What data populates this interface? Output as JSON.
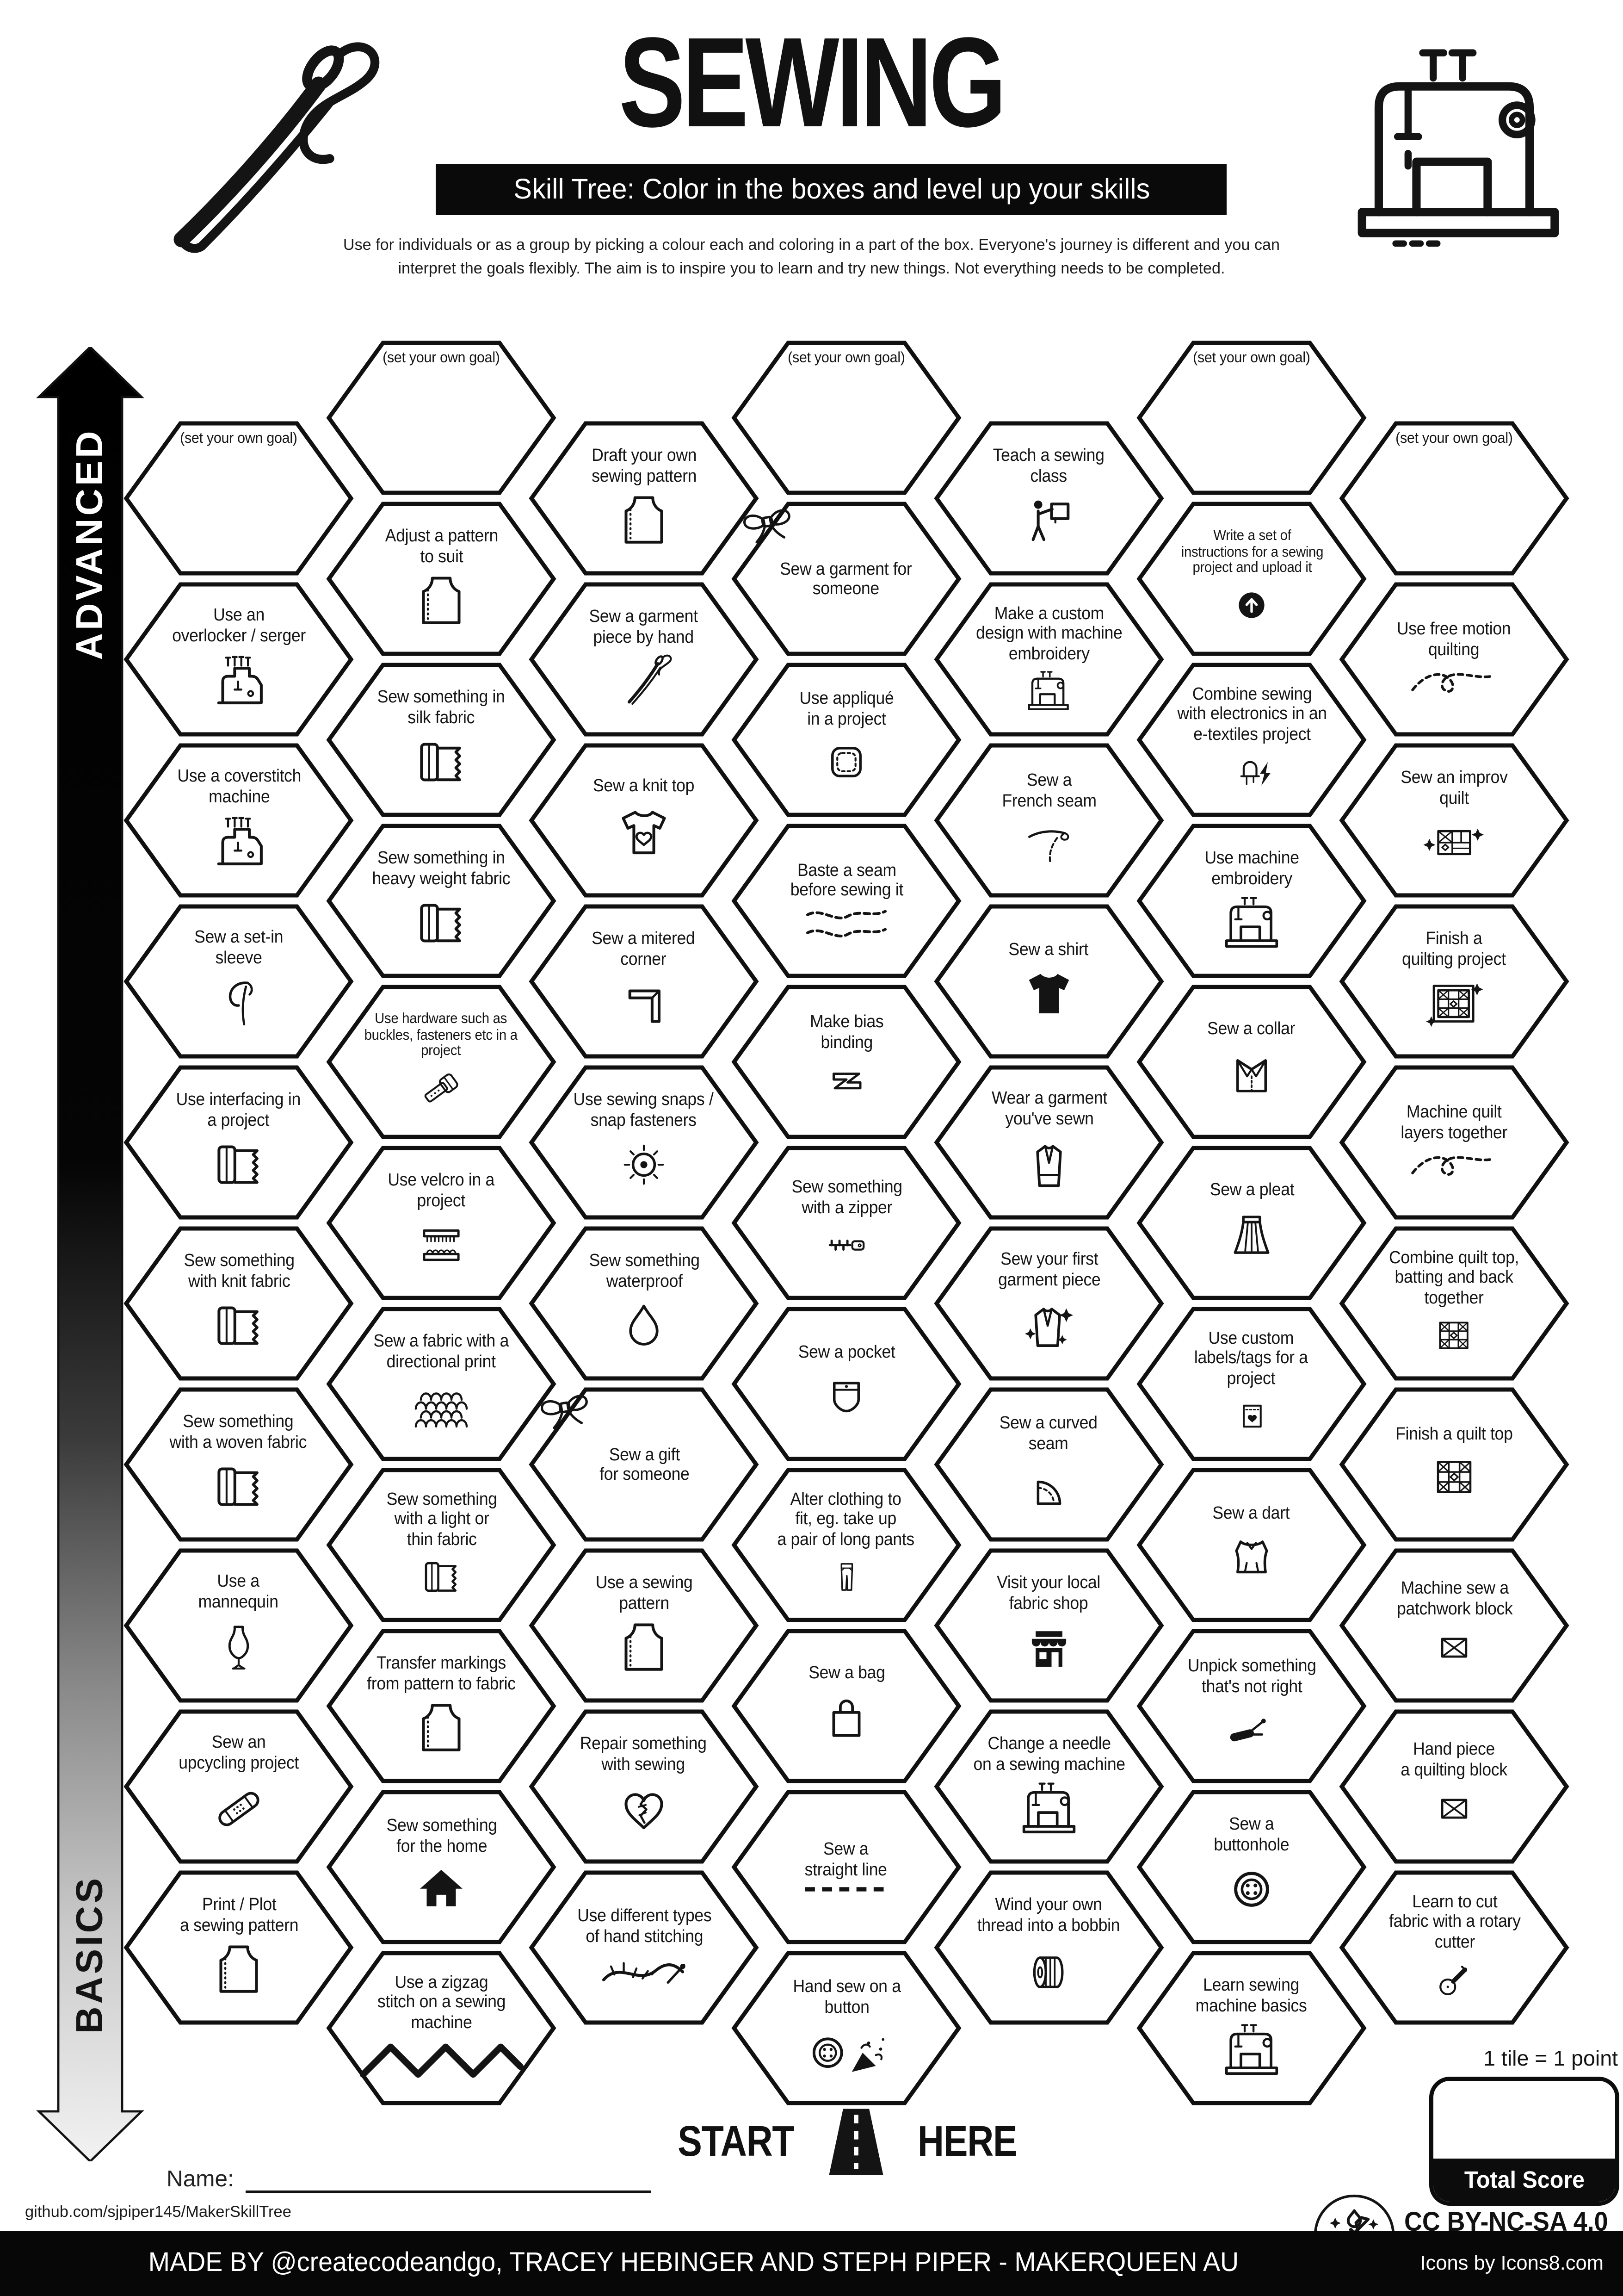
{
  "header": {
    "title": "SEWING",
    "subtitle": "Skill Tree:  Color in the boxes and level up your skills",
    "desc1": "Use for individuals or as a group by picking a colour each and coloring in a part of the box.  Everyone's journey is different and you can",
    "desc2": "interpret the goals flexibly.  The aim is to inspire you to learn and try new things. Not everything needs to be completed.",
    "left_icon": "sewing-needle-icon",
    "right_icon": "sewing-machine-icon"
  },
  "axis": {
    "top_label": "ADVANCED",
    "bottom_label": "BASICS"
  },
  "grid": {
    "columns": [
      {
        "hexes": [
          {
            "label": "(set your own goal)",
            "goal": true
          },
          {
            "label": "Use an\noverlocker / serger",
            "icon": "overlocker-icon"
          },
          {
            "label": "Use a coverstitch\nmachine",
            "icon": "overlocker-icon"
          },
          {
            "label": "Sew a set-in\nsleeve",
            "icon": "sleeve-icon"
          },
          {
            "label": "Use interfacing in\na project",
            "icon": "fabric-icon"
          },
          {
            "label": "Sew something\nwith knit fabric",
            "icon": "fabric-icon"
          },
          {
            "label": "Sew something\nwith a woven fabric",
            "icon": "fabric-icon"
          },
          {
            "label": "Use a\nmannequin",
            "icon": "mannequin-icon"
          },
          {
            "label": "Sew an\nupcycling project",
            "icon": "patch-icon"
          },
          {
            "label": "Print / Plot\na sewing pattern",
            "icon": "pattern-icon"
          }
        ]
      },
      {
        "hexes": [
          {
            "label": "(set your own goal)",
            "goal": true
          },
          {
            "label": "Adjust a pattern\nto suit",
            "icon": "pattern-icon"
          },
          {
            "label": "Sew something in\nsilk fabric",
            "icon": "fabric-icon"
          },
          {
            "label": "Sew something in\nheavy weight fabric",
            "icon": "fabric-icon"
          },
          {
            "label": "Use hardware such as\nbuckles, fasteners etc in a\nproject",
            "icon": "buckle-icon",
            "small": true
          },
          {
            "label": "Use velcro in a\nproject",
            "icon": "velcro-icon"
          },
          {
            "label": "Sew a fabric with a\ndirectional print",
            "icon": "scales-icon"
          },
          {
            "label": "Sew something\nwith a light or\nthin fabric",
            "icon": "fabric-icon"
          },
          {
            "label": "Transfer markings\nfrom pattern to fabric",
            "icon": "pattern-icon"
          },
          {
            "label": "Sew something\nfor the home",
            "icon": "house-icon"
          },
          {
            "label": "Use a zigzag\nstitch on a sewing\nmachine",
            "icon": "zigzag-icon"
          }
        ]
      },
      {
        "hexes": [
          {
            "label": "Draft your own\nsewing pattern",
            "icon": "pattern-icon"
          },
          {
            "label": "Sew a garment\npiece by hand",
            "icon": "hand-needle-icon"
          },
          {
            "label": "Sew a knit top",
            "icon": "tshirt-heart-icon"
          },
          {
            "label": "Sew a mitered\ncorner",
            "icon": "corner-icon"
          },
          {
            "label": "Use sewing snaps /\nsnap fasteners",
            "icon": "snap-icon"
          },
          {
            "label": "Sew something\nwaterproof",
            "icon": "droplet-icon"
          },
          {
            "label": "Sew a gift\nfor someone",
            "icon": "bow-icon",
            "icon_pos": "top-left"
          },
          {
            "label": "Use a sewing\npattern",
            "icon": "pattern-icon"
          },
          {
            "label": "Repair something\nwith sewing",
            "icon": "mended-heart-icon"
          },
          {
            "label": "Use different types\nof hand stitching",
            "icon": "hand-stitch-icon"
          }
        ]
      },
      {
        "hexes": [
          {
            "label": "(set your own goal)",
            "goal": true
          },
          {
            "label": "Sew a garment for\nsomeone",
            "icon": "bow-icon",
            "icon_pos": "top-left"
          },
          {
            "label": "Use appliqué\nin a project",
            "icon": "applique-icon"
          },
          {
            "label": "Baste a seam\nbefore sewing it",
            "icon": "baste-icon"
          },
          {
            "label": "Make bias\nbinding",
            "icon": "bias-icon"
          },
          {
            "label": "Sew something\nwith a zipper",
            "icon": "zipper-icon"
          },
          {
            "label": "Sew a pocket",
            "icon": "pocket-icon"
          },
          {
            "label": "Alter clothing to\nfit, eg. take up\na pair of long pants",
            "icon": "pants-icon"
          },
          {
            "label": "Sew a bag",
            "icon": "bag-icon"
          },
          {
            "label": "Sew a\nstraight line",
            "icon": "dashed-line-icon"
          },
          {
            "label": "Hand sew on a\nbutton",
            "icon": "button-party-icon"
          }
        ]
      },
      {
        "hexes": [
          {
            "label": "Teach a sewing\nclass",
            "icon": "teach-icon"
          },
          {
            "label": "Make a custom\ndesign with machine\nembroidery",
            "icon": "machine-icon"
          },
          {
            "label": "Sew a\nFrench seam",
            "icon": "french-seam-icon"
          },
          {
            "label": "Sew a shirt",
            "icon": "tshirt-filled-icon"
          },
          {
            "label": "Wear a garment\nyou've sewn",
            "icon": "jacket-icon"
          },
          {
            "label": "Sew your first\ngarment piece",
            "icon": "jacket-sparkle-icon"
          },
          {
            "label": "Sew a curved\nseam",
            "icon": "curved-seam-icon"
          },
          {
            "label": "Visit your local\nfabric shop",
            "icon": "shop-icon"
          },
          {
            "label": "Change a needle\non a sewing machine",
            "icon": "machine-icon"
          },
          {
            "label": "Wind your own\nthread into a bobbin",
            "icon": "bobbin-icon"
          }
        ]
      },
      {
        "hexes": [
          {
            "label": "(set your own goal)",
            "goal": true
          },
          {
            "label": "Write a set of\ninstructions for a sewing\nproject and upload it",
            "icon": "upload-icon",
            "small": true
          },
          {
            "label": "Combine sewing\nwith electronics in an\ne-textiles project",
            "icon": "etextile-icon"
          },
          {
            "label": "Use machine\nembroidery",
            "icon": "machine-icon"
          },
          {
            "label": "Sew a collar",
            "icon": "collar-icon"
          },
          {
            "label": "Sew a pleat",
            "icon": "skirt-icon"
          },
          {
            "label": "Use custom\nlabels/tags for a\nproject",
            "icon": "tag-icon"
          },
          {
            "label": "Sew a dart",
            "icon": "bodice-icon"
          },
          {
            "label": "Unpick something\nthat's not right",
            "icon": "seam-ripper-icon"
          },
          {
            "label": "Sew a\nbuttonhole",
            "icon": "button-icon"
          },
          {
            "label": "Learn sewing\nmachine basics",
            "icon": "machine-icon"
          }
        ]
      },
      {
        "hexes": [
          {
            "label": "(set your own goal)",
            "goal": true
          },
          {
            "label": "Use free motion\nquilting",
            "icon": "quilt-swirl-icon"
          },
          {
            "label": "Sew an improv\nquilt",
            "icon": "improv-quilt-icon"
          },
          {
            "label": "Finish a\nquilting project",
            "icon": "quilt-frame-icon"
          },
          {
            "label": "Machine quilt\nlayers together",
            "icon": "quilt-swirl-icon"
          },
          {
            "label": "Combine quilt top,\nbatting and back\ntogether",
            "icon": "quilt-block-icon"
          },
          {
            "label": "Finish a quilt top",
            "icon": "quilt-block-icon"
          },
          {
            "label": "Machine sew a\npatchwork block",
            "icon": "patch-square-icon"
          },
          {
            "label": "Hand piece\na quilting block",
            "icon": "patch-square-icon"
          },
          {
            "label": "Learn to cut\nfabric with a rotary\ncutter",
            "icon": "rotary-icon"
          }
        ]
      }
    ]
  },
  "footer": {
    "start_left": "START",
    "start_right": "HERE",
    "start_icon": "road-icon",
    "name_label": "Name:",
    "github": "github.com/sjpiper145/MakerSkillTree",
    "tile_note": "1 tile = 1 point",
    "total_score": "Total Score",
    "license": "CC BY-NC-SA 4.0",
    "license_icon": "maker-tools-icon",
    "credit": "MADE BY @createcodeandgo, TRACEY HEBINGER  AND STEPH PIPER  -  MAKERQUEEN AU",
    "icons_credit": "Icons by Icons8.com"
  },
  "colors": {
    "ink": "#111111",
    "paper": "#ffffff"
  }
}
